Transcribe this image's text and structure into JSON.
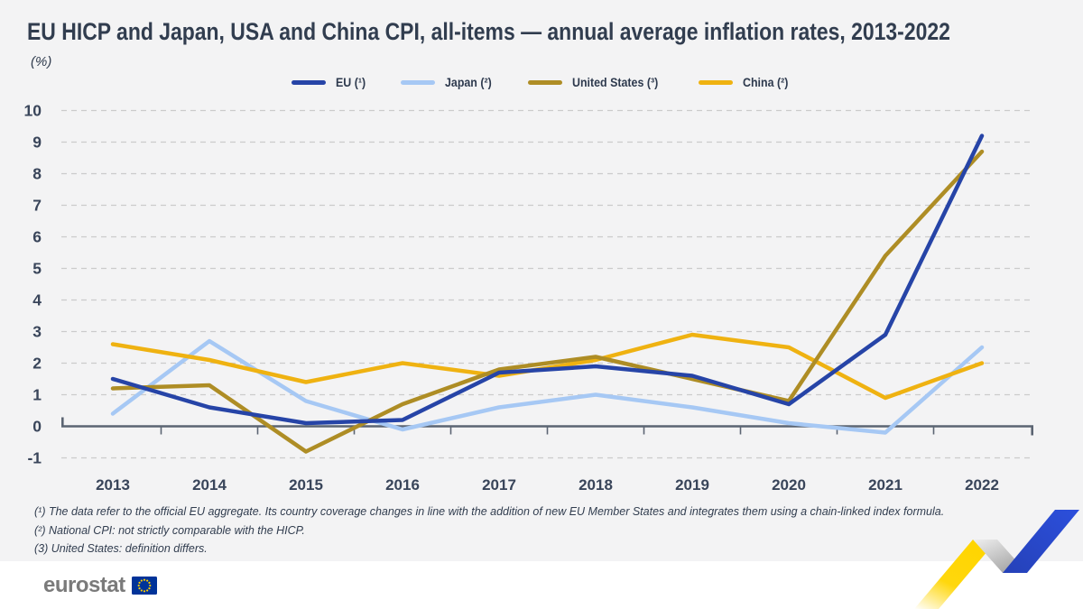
{
  "header": {
    "title": "EU HICP and Japan, USA and China CPI, all-items — annual average inflation rates, 2013-2022",
    "unit_label": "(%)"
  },
  "chart_data": {
    "type": "line",
    "title": "EU HICP and Japan, USA and China CPI, all-items — annual average inflation rates, 2013-2022",
    "ylabel": "(%)",
    "categories": [
      "2013",
      "2014",
      "2015",
      "2016",
      "2017",
      "2018",
      "2019",
      "2020",
      "2021",
      "2022"
    ],
    "series": [
      {
        "name": "EU (¹)",
        "color": "#2644A7",
        "values": [
          1.5,
          0.6,
          0.1,
          0.2,
          1.7,
          1.9,
          1.6,
          0.7,
          2.9,
          9.2
        ]
      },
      {
        "name": "Japan (²)",
        "color": "#A6C8F4",
        "values": [
          0.4,
          2.7,
          0.8,
          -0.1,
          0.6,
          1.0,
          0.6,
          0.1,
          -0.2,
          2.5
        ]
      },
      {
        "name": "United States (³)",
        "color": "#AE8D25",
        "values": [
          1.2,
          1.3,
          -0.8,
          0.7,
          1.8,
          2.2,
          1.5,
          0.8,
          5.4,
          8.7
        ]
      },
      {
        "name": "China (²)",
        "color": "#EFB211",
        "values": [
          2.6,
          2.1,
          1.4,
          2.0,
          1.6,
          2.1,
          2.9,
          2.5,
          0.9,
          2.0
        ]
      }
    ],
    "ylim": [
      -1,
      10
    ],
    "yticks": [
      10,
      9,
      8,
      7,
      6,
      5,
      4,
      3,
      2,
      1,
      0,
      -1
    ],
    "grid": "horizontal-dashed",
    "legend_position": "top-center"
  },
  "footnotes": [
    "(¹) The data refer to the official EU aggregate. Its country coverage changes in line with the addition of new EU Member States and integrates them using a chain-linked index formula.",
    "(²) National CPI: not strictly comparable with the HICP.",
    "(3) United States: definition differs."
  ],
  "footer": {
    "logo_text": "eurostat"
  },
  "colors": {
    "card_bg": "#F3F3F4",
    "page_bg": "#FFFFFF",
    "title": "#313D4F",
    "grid": "#CBCBCB",
    "axis": "#5B6472",
    "tick_label": "#39455A",
    "footnote": "#313D4F",
    "logo_gray": "#7A7A7A",
    "flag_blue": "#003399",
    "star_yellow": "#FFCC00",
    "deco_yellow": "#FFD500",
    "deco_gray": "#ABABAB",
    "deco_blue": "#2B4BD3"
  }
}
